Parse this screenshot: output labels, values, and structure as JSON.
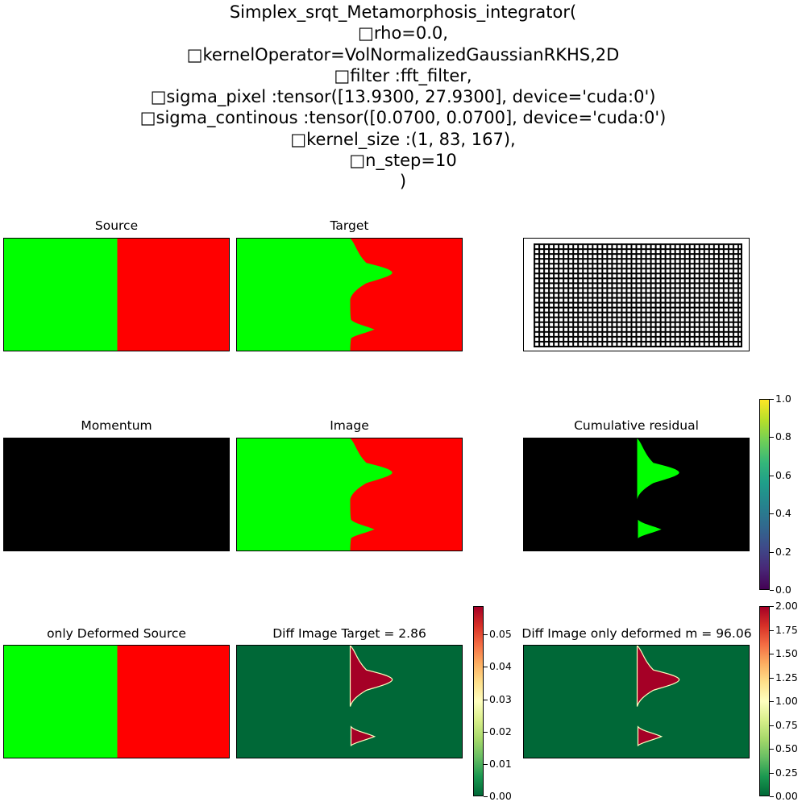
{
  "suptitle": [
    "Simplex_srqt_Metamorphosis_integrator(",
    "\trho=0.0,",
    "\tkernelOperator=VolNormalizedGaussianRKHS,2D",
    "\tfilter :fft_filter,",
    "\tsigma_pixel :tensor([13.9300, 27.9300], device='cuda:0')",
    "\tsigma_continous :tensor([0.0700, 0.0700], device='cuda:0')",
    "\tkernel_size :(1, 83, 167),",
    "\tn_step=10",
    ")"
  ],
  "panels": {
    "source": {
      "title": "Source"
    },
    "target": {
      "title": "Target"
    },
    "grid": {
      "title": ""
    },
    "momentum": {
      "title": "Momentum"
    },
    "image": {
      "title": "Image"
    },
    "residual": {
      "title": "Cumulative residual"
    },
    "only_deformed": {
      "title": "only Deformed Source"
    },
    "diff_target": {
      "title": "Diff Image Target = 2.86"
    },
    "diff_deformed": {
      "title": "Diff Image only deformed m = 96.06"
    }
  },
  "colorbars": {
    "residual": {
      "cmap": "viridis",
      "min": 0.0,
      "max": 1.0,
      "ticks": [
        0.0,
        0.2,
        0.4,
        0.6,
        0.8,
        1.0
      ],
      "tick_labels": [
        "0.0",
        "0.2",
        "0.4",
        "0.6",
        "0.8",
        "1.0"
      ]
    },
    "diff_target": {
      "cmap": "RdYlGn_r",
      "min": 0.0,
      "max": 0.0588,
      "ticks": [
        0.0,
        0.01,
        0.02,
        0.03,
        0.04,
        0.05
      ],
      "tick_labels": [
        "0.00",
        "0.01",
        "0.02",
        "0.03",
        "0.04",
        "0.05"
      ]
    },
    "diff_deformed": {
      "cmap": "RdYlGn_r",
      "min": 0.0,
      "max": 2.0,
      "ticks": [
        0.0,
        0.25,
        0.5,
        0.75,
        1.0,
        1.25,
        1.5,
        1.75,
        2.0
      ],
      "tick_labels": [
        "0.00",
        "0.25",
        "0.50",
        "0.75",
        "1.00",
        "1.25",
        "1.50",
        "1.75",
        "2.00"
      ]
    }
  },
  "colors": {
    "green": "#00ff00",
    "red": "#ff0000",
    "black": "#000000",
    "diff_low": "#006837",
    "diff_high": "#a50026"
  },
  "chart_data": {
    "type": "heatmap",
    "title": "Simplex_srqt_Metamorphosis_integrator( rho=0.0, kernelOperator=VolNormalizedGaussianRKHS,2D filter :fft_filter, sigma_pixel :tensor([13.9300, 27.9300], device='cuda:0') sigma_continous :tensor([0.0700, 0.0700], device='cuda:0') kernel_size :(1, 83, 167), n_step=10 )",
    "layout": "3x3 image grid",
    "panel_titles": [
      "Source",
      "Target",
      "",
      "Momentum",
      "Image",
      "Cumulative residual",
      "only Deformed Source",
      "Diff Image Target = 2.86",
      "Diff Image only deformed m = 96.06"
    ],
    "metrics": {
      "diff_image_target": 2.86,
      "diff_image_only_deformed_m": 96.06
    },
    "colorbar_ranges": {
      "cumulative_residual": [
        0,
        1
      ],
      "diff_image_target": [
        0,
        0.0588
      ],
      "diff_image_only_deformed": [
        0,
        2
      ]
    }
  }
}
